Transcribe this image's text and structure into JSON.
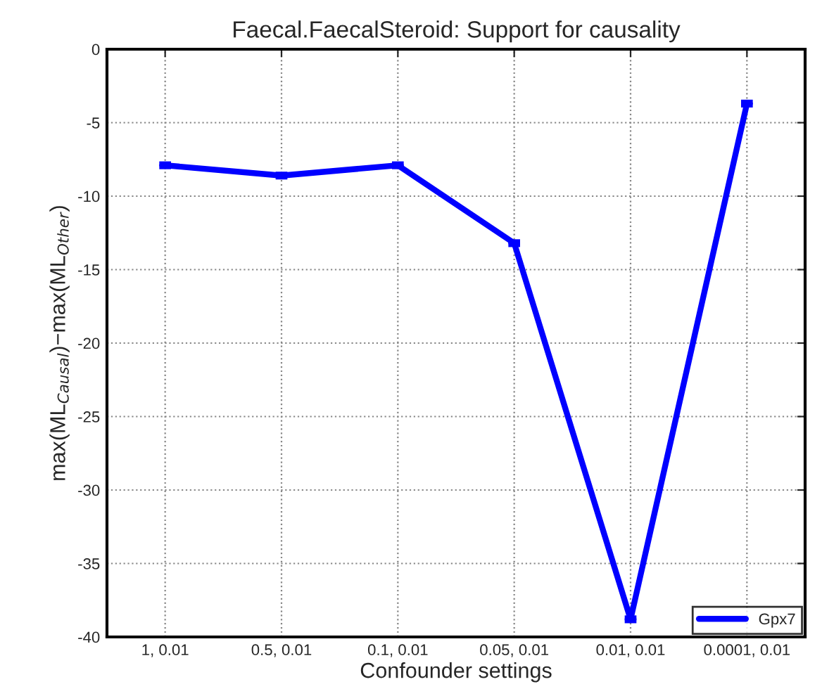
{
  "chart_data": {
    "type": "line",
    "title": "Faecal.FaecalSteroid: Support for causality",
    "xlabel": "Confounder settings",
    "ylabel": "max(ML$_{Causal}$)−max(ML$_{Other}$)",
    "categories": [
      "1, 0.01",
      "0.5, 0.01",
      "0.1, 0.01",
      "0.05, 0.01",
      "0.01, 0.01",
      "0.0001, 0.01"
    ],
    "series": [
      {
        "name": "Gpx7",
        "color": "#0000ff",
        "values": [
          -7.9,
          -8.6,
          -7.9,
          -13.2,
          -38.8,
          -3.7
        ],
        "errors": [
          0.1,
          0.1,
          0.1,
          0.1,
          0.1,
          0.1
        ]
      }
    ],
    "ylim": [
      -40,
      0
    ],
    "yticks": [
      -40,
      -35,
      -30,
      -25,
      -20,
      -15,
      -10,
      -5,
      0
    ],
    "grid": true,
    "legend": "bottom right",
    "marker": "none",
    "line_style": "solid"
  }
}
